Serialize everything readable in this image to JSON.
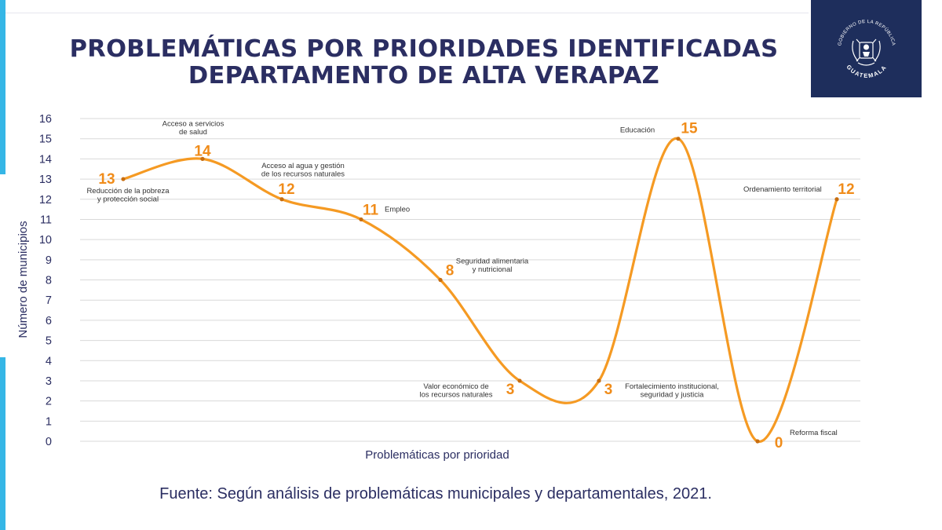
{
  "header": {
    "title_line1": "PROBLEMÁTICAS POR PRIORIDADES IDENTIFICADAS",
    "title_line2": "DEPARTAMENTO DE ALTA VERAPAZ"
  },
  "emblem": {
    "top_text": "GOBIERNO DE LA REPÚBLICA",
    "bottom_text": "GUATEMALA",
    "icon": "coat-of-arms-icon"
  },
  "source_note": "Fuente: Según análisis de problemáticas municipales y departamentales, 2021.",
  "colors": {
    "line": "#f59a23",
    "value_label": "#f08c1a",
    "title": "#2b2e62",
    "emblem_bg": "#1e2e5c",
    "accent": "#35b6e6",
    "grid": "#d9d9d9"
  },
  "chart_data": {
    "type": "line",
    "smooth": true,
    "xlabel": "Problemáticas por prioridad",
    "ylabel": "Número de municipios",
    "ylim": [
      0,
      16
    ],
    "yticks": [
      0,
      1,
      2,
      3,
      4,
      5,
      6,
      7,
      8,
      9,
      10,
      11,
      12,
      13,
      14,
      15,
      16
    ],
    "grid": true,
    "categories": [
      [
        "Reducción de la pobreza",
        "y protección social"
      ],
      [
        "Acceso a servicios",
        "de salud"
      ],
      [
        "Acceso al agua y gestión",
        "de los recursos naturales"
      ],
      [
        "Empleo"
      ],
      [
        "Seguridad alimentaria",
        "y nutricional"
      ],
      [
        "Valor económico de",
        "los recursos naturales"
      ],
      [
        "Fortalecimiento institucional,",
        "seguridad y justicia"
      ],
      [
        "Educación"
      ],
      [
        "Reforma fiscal"
      ],
      [
        "Ordenamiento territorial"
      ]
    ],
    "values": [
      13,
      14,
      12,
      11,
      8,
      3,
      3,
      15,
      0,
      12
    ]
  }
}
